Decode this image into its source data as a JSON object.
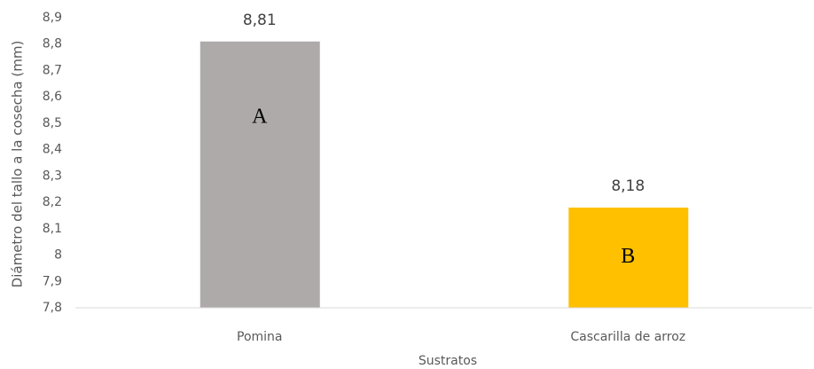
{
  "chart_data": {
    "type": "bar",
    "x_label": "Sustratos",
    "y_label": "Diámetro del tallo a la cosecha (mm)",
    "categories": [
      "Pomina",
      "Cascarilla de arroz"
    ],
    "values": [
      8.81,
      8.18
    ],
    "value_labels": [
      "8,81",
      "8,18"
    ],
    "annotations": [
      "A",
      "B"
    ],
    "colors": [
      "#aeaaaa",
      "#ffc000"
    ],
    "ylim": [
      7.8,
      8.9
    ],
    "yticks": [
      {
        "value": 7.8,
        "label": "7,8"
      },
      {
        "value": 7.9,
        "label": "7,9"
      },
      8,
      {
        "value": 8.1,
        "label": "8,1"
      },
      {
        "value": 8.2,
        "label": "8,2"
      },
      {
        "value": 8.3,
        "label": "8,3"
      },
      {
        "value": 8.4,
        "label": "8,4"
      },
      {
        "value": 8.5,
        "label": "8,5"
      },
      {
        "value": 8.6,
        "label": "8,6"
      },
      {
        "value": 8.7,
        "label": "8,7"
      },
      {
        "value": 8.8,
        "label": "8,8"
      },
      {
        "value": 8.9,
        "label": "8,9"
      }
    ],
    "grid": false
  }
}
